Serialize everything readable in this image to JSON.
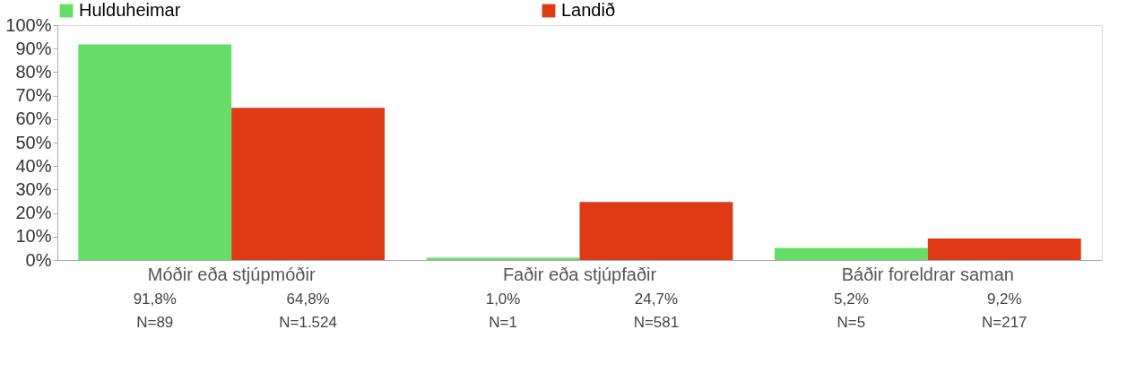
{
  "chart_data": {
    "type": "bar",
    "categories": [
      "Móðir eða stjúpmóðir",
      "Faðir eða stjúpfaðir",
      "Báðir foreldrar saman"
    ],
    "series": [
      {
        "name": "Hulduheimar",
        "color": "#66dd66",
        "values": [
          91.8,
          1.0,
          5.2
        ],
        "value_labels": [
          "91,8%\nN=89",
          "1,0%\nN=1",
          "5,2%\nN=5"
        ]
      },
      {
        "name": "Landið",
        "color": "#dd3a15",
        "values": [
          64.8,
          24.7,
          9.2
        ],
        "value_labels": [
          "64,8%\nN=1.524",
          "24,7%\nN=581",
          "9,2%\nN=217"
        ]
      }
    ],
    "ylim": [
      0,
      100
    ],
    "yticks": [
      {
        "value": 0,
        "label": "0%"
      },
      {
        "value": 10,
        "label": "10%"
      },
      {
        "value": 20,
        "label": "20%"
      },
      {
        "value": 30,
        "label": "30%"
      },
      {
        "value": 40,
        "label": "40%"
      },
      {
        "value": 50,
        "label": "50%"
      },
      {
        "value": 60,
        "label": "60%"
      },
      {
        "value": 70,
        "label": "70%"
      },
      {
        "value": 80,
        "label": "80%"
      },
      {
        "value": 90,
        "label": "90%"
      },
      {
        "value": 100,
        "label": "100%"
      }
    ],
    "grid": false,
    "legend": "top"
  }
}
